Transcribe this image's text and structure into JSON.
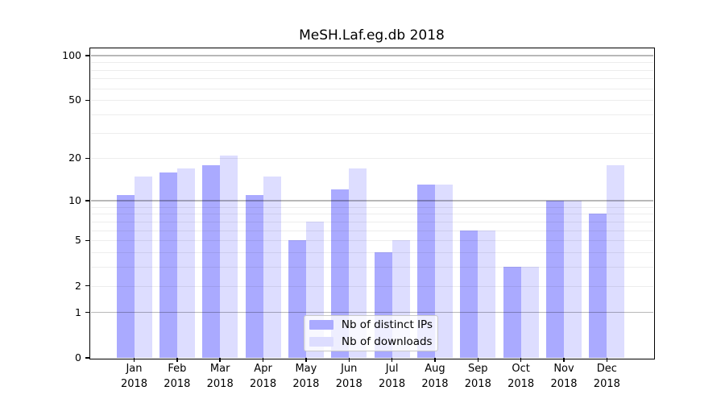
{
  "chart_data": {
    "type": "bar",
    "title": "MeSH.Laf.eg.db 2018",
    "categories": [
      "Jan",
      "Feb",
      "Mar",
      "Apr",
      "May",
      "Jun",
      "Jul",
      "Aug",
      "Sep",
      "Oct",
      "Nov",
      "Dec"
    ],
    "x_tick_year": "2018",
    "series": [
      {
        "name": "Nb of distinct IPs",
        "color": "#aaaaff",
        "values": [
          11,
          16,
          18,
          11,
          5,
          12,
          4,
          13,
          6,
          3,
          10,
          8
        ]
      },
      {
        "name": "Nb of downloads",
        "color": "#ddddff",
        "values": [
          15,
          17,
          21,
          15,
          7,
          17,
          5,
          13,
          6,
          3,
          10,
          18
        ]
      }
    ],
    "y_axis": {
      "scale": "log1p",
      "labeled_ticks": [
        0,
        1,
        2,
        5,
        10,
        20,
        50,
        100
      ],
      "major_gridlines": [
        1,
        10,
        100
      ],
      "minor_gridlines": [
        2,
        3,
        4,
        5,
        6,
        7,
        8,
        9,
        20,
        30,
        40,
        50,
        60,
        70,
        80,
        90
      ],
      "ylim": [
        0,
        110
      ]
    },
    "legend": {
      "position": "bottom-center"
    },
    "grid": true
  }
}
